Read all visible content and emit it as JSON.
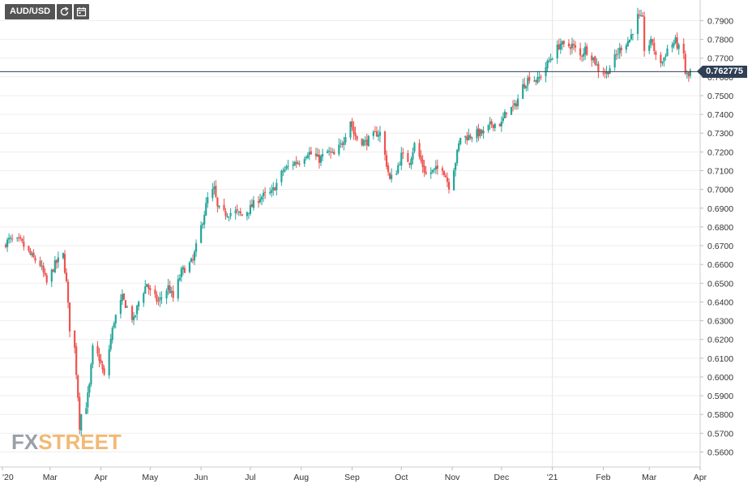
{
  "symbol": "AUD/USD",
  "toolbar": {
    "refresh_icon": "refresh-icon",
    "calendar_icon": "calendar-icon"
  },
  "last_price_label": "0.762775",
  "watermark": {
    "part1": "FX",
    "part2": "STREET"
  },
  "colors": {
    "up": "#26a69a",
    "down": "#ef5350",
    "grid": "#eeeeee",
    "price_line": "#2f3f55"
  },
  "chart_data": {
    "type": "candlestick",
    "title": "AUD/USD",
    "xlabel": "",
    "ylabel": "",
    "ylim": [
      0.552,
      0.801
    ],
    "y_ticks": [
      "0.5600",
      "0.5700",
      "0.5800",
      "0.5900",
      "0.6000",
      "0.6100",
      "0.6200",
      "0.6300",
      "0.6400",
      "0.6500",
      "0.6600",
      "0.6700",
      "0.6800",
      "0.6900",
      "0.7000",
      "0.7100",
      "0.7200",
      "0.7300",
      "0.7400",
      "0.7500",
      "0.7600",
      "0.7700",
      "0.7800",
      "0.7900"
    ],
    "x_ticks": [
      {
        "label": "'20",
        "date": "2020-02-01"
      },
      {
        "label": "Mar",
        "date": "2020-03-01"
      },
      {
        "label": "Apr",
        "date": "2020-04-01"
      },
      {
        "label": "May",
        "date": "2020-05-01"
      },
      {
        "label": "Jun",
        "date": "2020-06-01"
      },
      {
        "label": "Jul",
        "date": "2020-07-01"
      },
      {
        "label": "Aug",
        "date": "2020-08-01"
      },
      {
        "label": "Sep",
        "date": "2020-09-01"
      },
      {
        "label": "Oct",
        "date": "2020-10-01"
      },
      {
        "label": "Nov",
        "date": "2020-11-01"
      },
      {
        "label": "Dec",
        "date": "2020-12-01"
      },
      {
        "label": "'21",
        "date": "2021-01-01"
      },
      {
        "label": "Feb",
        "date": "2021-02-01"
      },
      {
        "label": "Mar",
        "date": "2021-03-01"
      },
      {
        "label": "Apr",
        "date": "2021-04-01"
      }
    ],
    "x_range": [
      "2020-02-01",
      "2021-04-01"
    ],
    "last_price": 0.762775,
    "series": [
      {
        "name": "AUD/USD",
        "close_anchors": [
          [
            "2020-02-01",
            0.67
          ],
          [
            "2020-02-05",
            0.673
          ],
          [
            "2020-02-12",
            0.672
          ],
          [
            "2020-02-19",
            0.664
          ],
          [
            "2020-02-24",
            0.66
          ],
          [
            "2020-02-28",
            0.65
          ],
          [
            "2020-03-04",
            0.66
          ],
          [
            "2020-03-09",
            0.665
          ],
          [
            "2020-03-11",
            0.65
          ],
          [
            "2020-03-13",
            0.626
          ],
          [
            "2020-03-16",
            0.615
          ],
          [
            "2020-03-18",
            0.59
          ],
          [
            "2020-03-19",
            0.574
          ],
          [
            "2020-03-20",
            0.58
          ],
          [
            "2020-03-23",
            0.585
          ],
          [
            "2020-03-25",
            0.595
          ],
          [
            "2020-03-27",
            0.615
          ],
          [
            "2020-03-31",
            0.61
          ],
          [
            "2020-04-03",
            0.6
          ],
          [
            "2020-04-07",
            0.62
          ],
          [
            "2020-04-09",
            0.63
          ],
          [
            "2020-04-14",
            0.642
          ],
          [
            "2020-04-17",
            0.637
          ],
          [
            "2020-04-21",
            0.63
          ],
          [
            "2020-04-24",
            0.64
          ],
          [
            "2020-04-29",
            0.65
          ],
          [
            "2020-05-01",
            0.645
          ],
          [
            "2020-05-06",
            0.64
          ],
          [
            "2020-05-12",
            0.648
          ],
          [
            "2020-05-15",
            0.642
          ],
          [
            "2020-05-20",
            0.656
          ],
          [
            "2020-05-27",
            0.662
          ],
          [
            "2020-06-01",
            0.68
          ],
          [
            "2020-06-05",
            0.695
          ],
          [
            "2020-06-09",
            0.7
          ],
          [
            "2020-06-11",
            0.69
          ],
          [
            "2020-06-15",
            0.687
          ],
          [
            "2020-06-22",
            0.688
          ],
          [
            "2020-06-26",
            0.686
          ],
          [
            "2020-07-01",
            0.69
          ],
          [
            "2020-07-07",
            0.696
          ],
          [
            "2020-07-14",
            0.698
          ],
          [
            "2020-07-21",
            0.71
          ],
          [
            "2020-07-27",
            0.714
          ],
          [
            "2020-07-31",
            0.715
          ],
          [
            "2020-08-05",
            0.72
          ],
          [
            "2020-08-12",
            0.716
          ],
          [
            "2020-08-17",
            0.72
          ],
          [
            "2020-08-21",
            0.718
          ],
          [
            "2020-08-26",
            0.725
          ],
          [
            "2020-08-31",
            0.737
          ],
          [
            "2020-09-02",
            0.73
          ],
          [
            "2020-09-04",
            0.727
          ],
          [
            "2020-09-09",
            0.725
          ],
          [
            "2020-09-16",
            0.73
          ],
          [
            "2020-09-18",
            0.73
          ],
          [
            "2020-09-21",
            0.718
          ],
          [
            "2020-09-24",
            0.705
          ],
          [
            "2020-09-28",
            0.71
          ],
          [
            "2020-10-01",
            0.718
          ],
          [
            "2020-10-06",
            0.715
          ],
          [
            "2020-10-09",
            0.724
          ],
          [
            "2020-10-13",
            0.715
          ],
          [
            "2020-10-16",
            0.708
          ],
          [
            "2020-10-21",
            0.71
          ],
          [
            "2020-10-26",
            0.712
          ],
          [
            "2020-10-30",
            0.702
          ],
          [
            "2020-11-03",
            0.715
          ],
          [
            "2020-11-06",
            0.728
          ],
          [
            "2020-11-10",
            0.728
          ],
          [
            "2020-11-16",
            0.73
          ],
          [
            "2020-11-20",
            0.73
          ],
          [
            "2020-11-25",
            0.735
          ],
          [
            "2020-12-01",
            0.735
          ],
          [
            "2020-12-04",
            0.742
          ],
          [
            "2020-12-09",
            0.744
          ],
          [
            "2020-12-14",
            0.755
          ],
          [
            "2020-12-18",
            0.76
          ],
          [
            "2020-12-23",
            0.758
          ],
          [
            "2020-12-31",
            0.77
          ],
          [
            "2021-01-06",
            0.778
          ],
          [
            "2021-01-08",
            0.776
          ],
          [
            "2021-01-13",
            0.777
          ],
          [
            "2021-01-18",
            0.771
          ],
          [
            "2021-01-21",
            0.775
          ],
          [
            "2021-01-26",
            0.77
          ],
          [
            "2021-01-29",
            0.764
          ],
          [
            "2021-02-03",
            0.762
          ],
          [
            "2021-02-08",
            0.77
          ],
          [
            "2021-02-12",
            0.776
          ],
          [
            "2021-02-17",
            0.78
          ],
          [
            "2021-02-22",
            0.792
          ],
          [
            "2021-02-25",
            0.79
          ],
          [
            "2021-02-26",
            0.775
          ],
          [
            "2021-03-03",
            0.779
          ],
          [
            "2021-03-05",
            0.77
          ],
          [
            "2021-03-09",
            0.768
          ],
          [
            "2021-03-12",
            0.775
          ],
          [
            "2021-03-17",
            0.779
          ],
          [
            "2021-03-19",
            0.775
          ],
          [
            "2021-03-22",
            0.772
          ],
          [
            "2021-03-23",
            0.762
          ],
          [
            "2021-03-25",
            0.76
          ],
          [
            "2021-03-26",
            0.7628
          ]
        ]
      }
    ]
  }
}
